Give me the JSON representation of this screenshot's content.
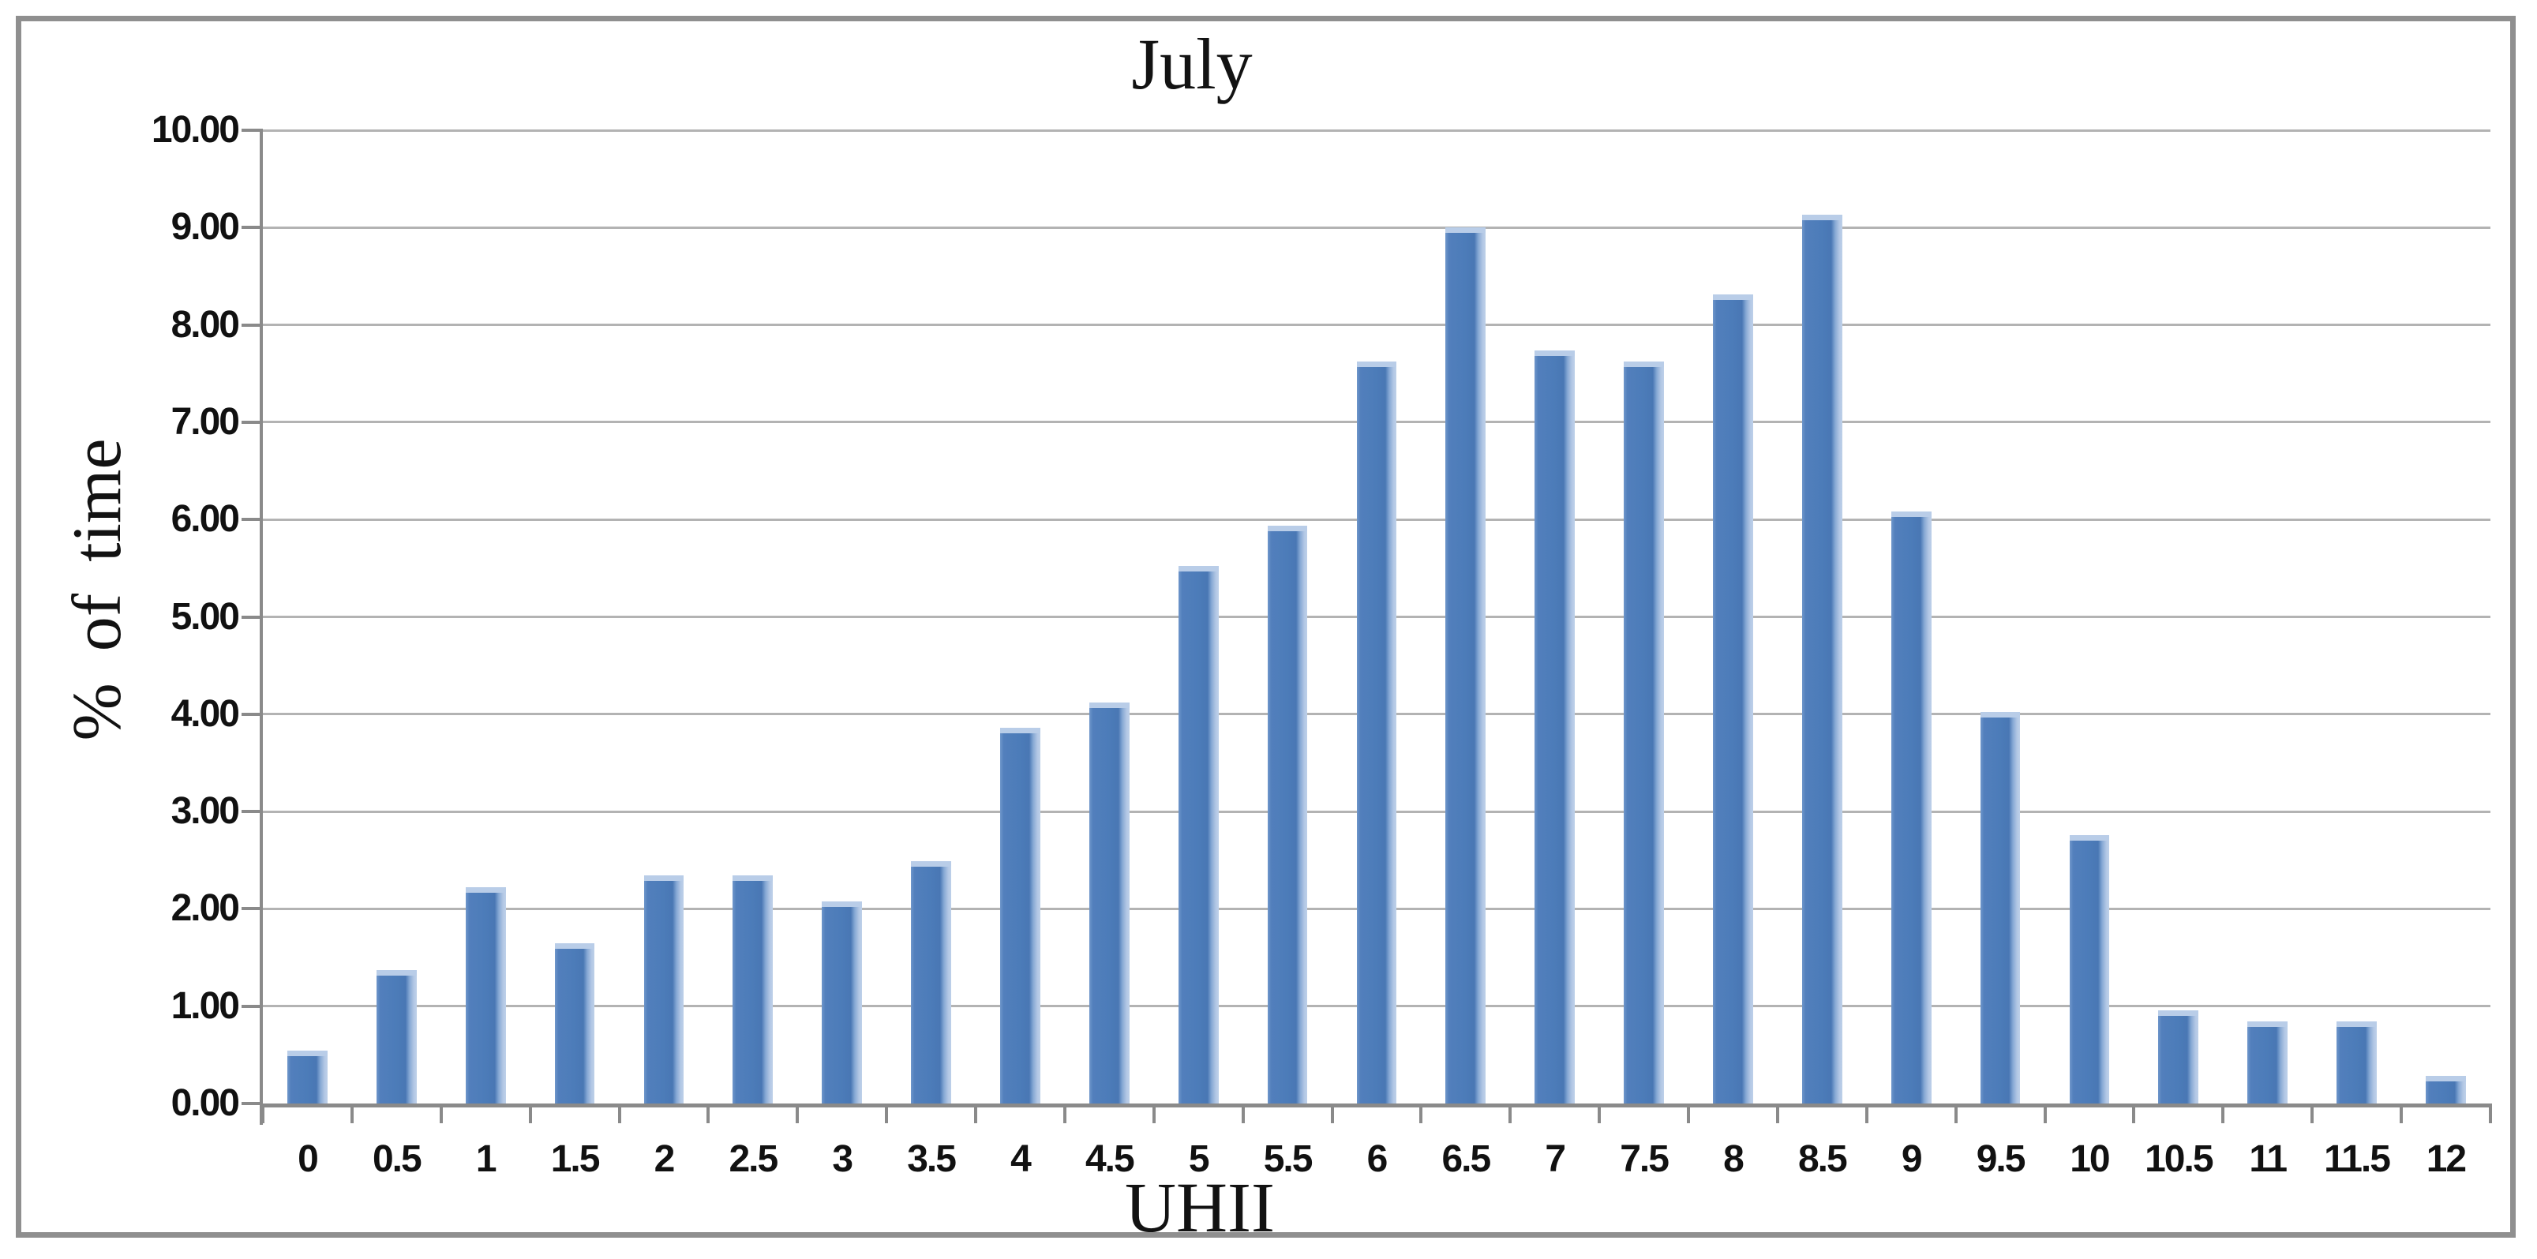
{
  "figure": {
    "title": "July",
    "border_color": "#8f8f8f",
    "background": "#ffffff"
  },
  "chart_data": {
    "type": "bar",
    "title": "July",
    "xlabel": "UHII",
    "ylabel": "% of time",
    "categories": [
      "0",
      "0.5",
      "1",
      "1.5",
      "2",
      "2.5",
      "3",
      "3.5",
      "4",
      "4.5",
      "5",
      "5.5",
      "6",
      "6.5",
      "7",
      "7.5",
      "8",
      "8.5",
      "9",
      "9.5",
      "10",
      "10.5",
      "11",
      "11.5",
      "12"
    ],
    "values": [
      0.54,
      1.37,
      2.22,
      1.65,
      2.34,
      2.34,
      2.08,
      2.49,
      3.86,
      4.12,
      5.52,
      5.94,
      7.62,
      9.0,
      7.74,
      7.62,
      8.31,
      9.13,
      6.08,
      4.02,
      2.76,
      0.96,
      0.84,
      0.84,
      0.28
    ],
    "ylim": [
      0,
      10
    ],
    "y_tick_labels": [
      "0.00",
      "1.00",
      "2.00",
      "3.00",
      "4.00",
      "5.00",
      "6.00",
      "7.00",
      "8.00",
      "9.00",
      "10.00"
    ],
    "grid": true,
    "legend_position": "none",
    "bar_color": "#4f81bd",
    "bar_cap_color": "#b9cde8",
    "gridline_color": "#b3b3b3",
    "axis_color": "#8a8a8a",
    "text_color": "#111111"
  }
}
